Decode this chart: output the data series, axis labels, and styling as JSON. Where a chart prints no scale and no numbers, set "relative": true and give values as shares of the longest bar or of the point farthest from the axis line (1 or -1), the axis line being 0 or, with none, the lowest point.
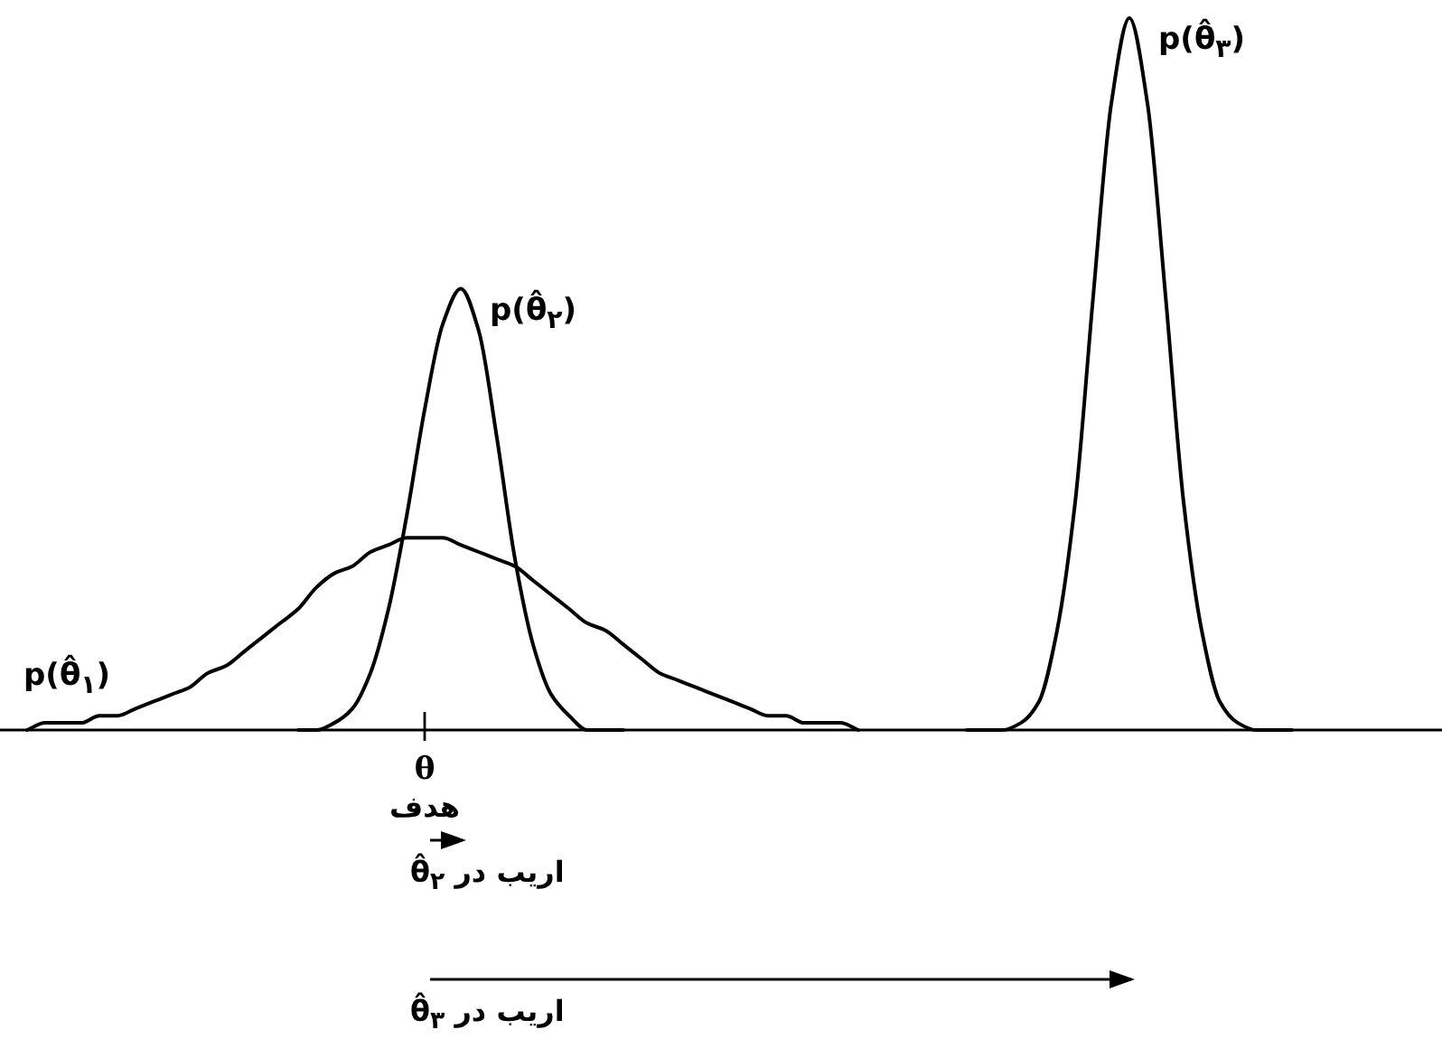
{
  "chart_data": {
    "type": "line",
    "relative": true,
    "marker": "none",
    "line_style": "solid",
    "xlabel": "هدف",
    "categories": [
      null,
      null,
      null,
      null,
      null,
      null,
      null,
      null,
      null,
      null,
      null,
      null,
      null,
      null,
      null,
      null,
      null,
      null,
      null,
      null,
      null,
      null,
      null,
      null,
      null,
      null,
      null,
      null,
      null,
      null,
      null,
      null,
      null,
      null,
      null,
      null,
      null,
      null,
      null,
      null,
      null,
      null,
      null,
      null,
      null,
      null,
      null,
      null,
      null,
      null,
      null,
      null,
      null,
      null,
      null,
      null,
      null,
      null,
      null,
      null,
      null,
      null,
      null,
      null,
      null,
      null,
      null,
      null,
      null,
      null,
      null,
      null,
      null,
      null,
      null,
      null,
      null,
      null,
      null
    ],
    "series": [
      {
        "name": "p(θ̂$_{۱}$)",
        "color": "#000000",
        "values": [
          0,
          0.01,
          0.01,
          0.01,
          0.02,
          0.02,
          0.03,
          0.04,
          0.05,
          0.06,
          0.08,
          0.09,
          0.11,
          0.13,
          0.15,
          0.17,
          0.2,
          0.22,
          0.23,
          0.25,
          0.26,
          0.27,
          0.27,
          0.27,
          0.26,
          0.25,
          0.24,
          0.23,
          0.21,
          0.19,
          0.17,
          0.15,
          0.14,
          0.12,
          0.1,
          0.08,
          0.07,
          0.06,
          0.05,
          0.04,
          0.03,
          0.02,
          0.02,
          0.01,
          0.01,
          0.01,
          0,
          null,
          null,
          null,
          null,
          null,
          null,
          null,
          null,
          null,
          null,
          null,
          null,
          null,
          null,
          null,
          null,
          null,
          null,
          null,
          null,
          null,
          null,
          null,
          null,
          null,
          null,
          null,
          null,
          null,
          null,
          null,
          null
        ]
      },
      {
        "name": "p(θ̂$_{۲}$)",
        "color": "#000000",
        "values": [
          null,
          null,
          null,
          null,
          null,
          null,
          null,
          null,
          null,
          null,
          null,
          null,
          null,
          null,
          null,
          0,
          0,
          0.01,
          0.03,
          0.08,
          0.17,
          0.3,
          0.45,
          0.57,
          0.62,
          0.56,
          0.41,
          0.24,
          0.12,
          0.05,
          0.02,
          0,
          0,
          0,
          null,
          null,
          null,
          null,
          null,
          null,
          null,
          null,
          null,
          null,
          null,
          null,
          null,
          null,
          null,
          null,
          null,
          null,
          null,
          null,
          null,
          null,
          null,
          null,
          null,
          null,
          null,
          null,
          null,
          null,
          null,
          null,
          null,
          null,
          null,
          null,
          null,
          null,
          null,
          null,
          null,
          null,
          null,
          null,
          null
        ]
      },
      {
        "name": "p(θ̂$_{۳}$)",
        "color": "#000000",
        "values": [
          null,
          null,
          null,
          null,
          null,
          null,
          null,
          null,
          null,
          null,
          null,
          null,
          null,
          null,
          null,
          null,
          null,
          null,
          null,
          null,
          null,
          null,
          null,
          null,
          null,
          null,
          null,
          null,
          null,
          null,
          null,
          null,
          null,
          null,
          null,
          null,
          null,
          null,
          null,
          null,
          null,
          null,
          null,
          null,
          null,
          null,
          null,
          null,
          null,
          null,
          null,
          null,
          0,
          0,
          0,
          0.01,
          0.04,
          0.14,
          0.32,
          0.61,
          0.88,
          1,
          0.88,
          0.61,
          0.32,
          0.14,
          0.04,
          0.01,
          0,
          0,
          0,
          null,
          null,
          null,
          null,
          null,
          null,
          null,
          null
        ]
      }
    ],
    "annotations": [
      "θ",
      "اریب در θ̂$_{۲}$",
      "اریب در θ̂$_{۳}$"
    ]
  }
}
